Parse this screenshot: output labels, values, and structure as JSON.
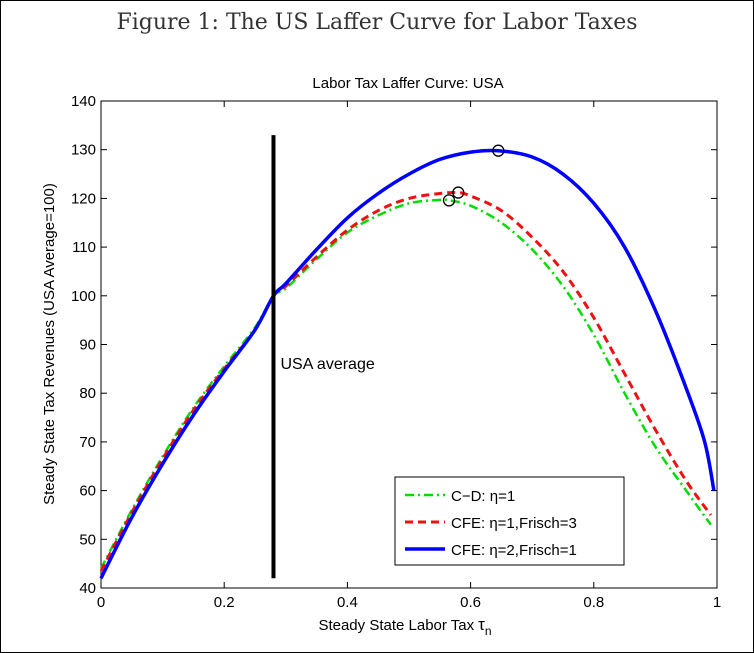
{
  "figure_title": "Figure 1: The US Laffer Curve for Labor Taxes",
  "chart_data": {
    "type": "line",
    "title": "Labor Tax Laffer Curve: USA",
    "xlabel": "Steady State Labor Tax",
    "xlabel_symbol": "τ",
    "xlabel_subscript": "n",
    "ylabel": "Steady State Tax Revenues (USA   Average=100)",
    "xlim": [
      0,
      1
    ],
    "ylim": [
      40,
      140
    ],
    "xticks": [
      "0",
      "0.2",
      "0.4",
      "0.6",
      "0.8",
      "1"
    ],
    "yticks": [
      "40",
      "50",
      "60",
      "70",
      "80",
      "90",
      "100",
      "110",
      "120",
      "130",
      "140"
    ],
    "annotation": {
      "text": "USA   average",
      "x": 0.28,
      "y_range": [
        42,
        133
      ]
    },
    "legend_position": "bottom-right",
    "series": [
      {
        "name": "C−D:  η=1",
        "style": "dash-dot",
        "color": "#00dd00",
        "x": [
          0,
          0.05,
          0.1,
          0.15,
          0.2,
          0.25,
          0.28,
          0.3,
          0.35,
          0.4,
          0.45,
          0.5,
          0.55,
          0.565,
          0.6,
          0.65,
          0.7,
          0.75,
          0.8,
          0.85,
          0.9,
          0.95,
          0.99
        ],
        "values": [
          44,
          56,
          67,
          77,
          85.5,
          93.5,
          100,
          101.5,
          107.5,
          113,
          116.5,
          119,
          119.7,
          119.6,
          118.5,
          115,
          109.5,
          102,
          92,
          80,
          69,
          60,
          53
        ]
      },
      {
        "name": "CFE: η=1,Frisch=3",
        "style": "dashed",
        "color": "#ee1111",
        "x": [
          0,
          0.05,
          0.1,
          0.15,
          0.2,
          0.25,
          0.28,
          0.3,
          0.35,
          0.4,
          0.45,
          0.5,
          0.55,
          0.58,
          0.6,
          0.65,
          0.7,
          0.75,
          0.8,
          0.85,
          0.9,
          0.95,
          0.99
        ],
        "values": [
          43.5,
          55.5,
          66.5,
          76.5,
          85,
          93,
          100,
          102,
          108,
          113.5,
          117.5,
          120,
          121,
          121.2,
          120.5,
          117.5,
          112,
          105,
          95.5,
          84,
          72.5,
          62,
          55
        ]
      },
      {
        "name": "CFE: η=2,Frisch=1",
        "style": "solid",
        "color": "#0000ff",
        "x": [
          0,
          0.05,
          0.1,
          0.15,
          0.2,
          0.25,
          0.28,
          0.3,
          0.35,
          0.4,
          0.45,
          0.5,
          0.55,
          0.6,
          0.645,
          0.7,
          0.75,
          0.8,
          0.85,
          0.9,
          0.95,
          0.98,
          0.995
        ],
        "values": [
          42,
          54.5,
          65.5,
          75.5,
          84.5,
          93,
          100,
          102.5,
          109.5,
          116,
          121,
          125,
          128,
          129.5,
          129.8,
          128.5,
          125,
          119,
          110,
          97,
          81,
          70,
          60
        ]
      }
    ],
    "peaks": [
      {
        "series": "C−D:  η=1",
        "x": 0.565,
        "y": 119.6
      },
      {
        "series": "CFE: η=1,Frisch=3",
        "x": 0.58,
        "y": 121.2
      },
      {
        "series": "CFE: η=2,Frisch=1",
        "x": 0.645,
        "y": 129.8
      }
    ]
  }
}
